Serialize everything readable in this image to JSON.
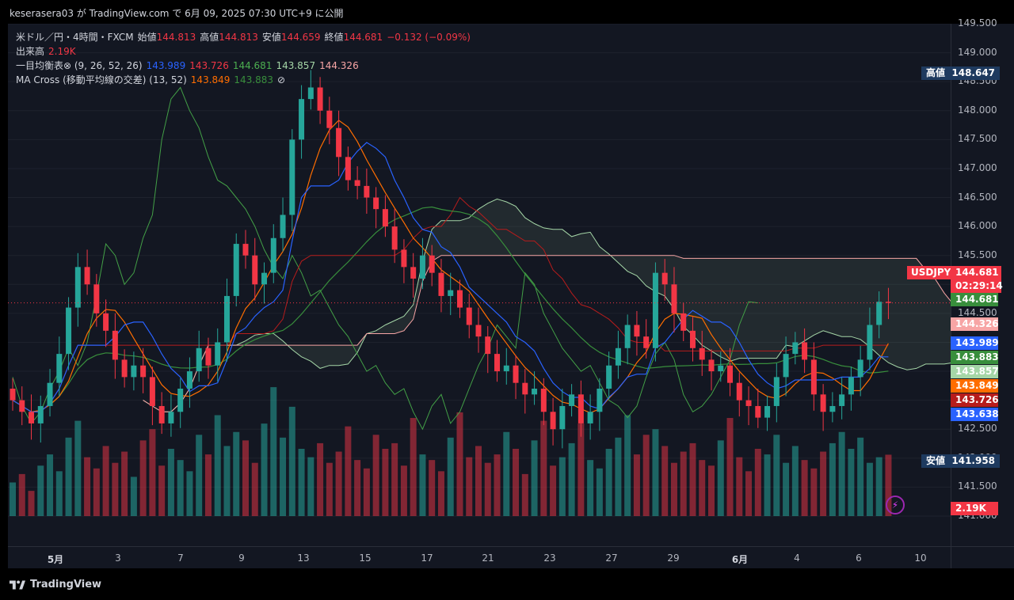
{
  "header": {
    "publish_text": "keserasera03 が TradingView.com で 6月 09, 2025 07:30 UTC+9 に公開"
  },
  "legend": {
    "symbol": "米ドル／円・4時間・FXCM",
    "open_label": "始値",
    "open": "144.813",
    "high_label": "高値",
    "high": "144.813",
    "low_label": "安値",
    "low": "144.659",
    "close_label": "終値",
    "close": "144.681",
    "change": "−0.132 (−0.09%)",
    "volume_label": "出来高",
    "volume": "2.19K",
    "ichimoku_label": "一目均衡表⊗ (9, 26, 52, 26)",
    "ichimoku_values": [
      "143.989",
      "143.726",
      "144.681",
      "143.857",
      "144.326"
    ],
    "macross_label": "MA Cross (移動平均線の交差) (13, 52)",
    "macross_values": [
      "143.849",
      "143.883"
    ],
    "macross_icon": "⊘"
  },
  "price_axis": {
    "ticks": [
      "149.500",
      "149.000",
      "148.500",
      "148.000",
      "147.500",
      "147.000",
      "146.500",
      "146.000",
      "145.500",
      "145.000",
      "144.500",
      "144.000",
      "143.500",
      "143.000",
      "142.500",
      "142.000",
      "141.500",
      "141.000"
    ],
    "high_label": "高値",
    "high_value": "148.647",
    "low_label": "安値",
    "low_value": "141.958",
    "symbol_tag": "USDJPY",
    "last_price": "144.681",
    "countdown": "02:29:14",
    "labels": [
      {
        "text": "144.681",
        "value": 144.681,
        "color": "#388e3c"
      },
      {
        "text": "144.326",
        "value": 144.326,
        "color": "#f7a5a5"
      },
      {
        "text": "143.989",
        "value": 143.989,
        "color": "#2962ff"
      },
      {
        "text": "143.883",
        "value": 143.883,
        "color": "#388e3c"
      },
      {
        "text": "143.857",
        "value": 143.857,
        "color": "#a5d6a7"
      },
      {
        "text": "143.849",
        "value": 143.849,
        "color": "#ff6d00"
      },
      {
        "text": "143.726",
        "value": 143.726,
        "color": "#b71c1c"
      },
      {
        "text": "143.638",
        "value": 143.638,
        "color": "#2962ff"
      }
    ],
    "volume_tag": "2.19K"
  },
  "time_axis": {
    "ticks": [
      {
        "label": "5月",
        "bold": true
      },
      {
        "label": "3",
        "bold": false
      },
      {
        "label": "7",
        "bold": false
      },
      {
        "label": "9",
        "bold": false
      },
      {
        "label": "13",
        "bold": false
      },
      {
        "label": "15",
        "bold": false
      },
      {
        "label": "17",
        "bold": false
      },
      {
        "label": "21",
        "bold": false
      },
      {
        "label": "23",
        "bold": false
      },
      {
        "label": "27",
        "bold": false
      },
      {
        "label": "29",
        "bold": false
      },
      {
        "label": "6月",
        "bold": true
      },
      {
        "label": "4",
        "bold": false
      },
      {
        "label": "6",
        "bold": false
      },
      {
        "label": "10",
        "bold": false
      }
    ]
  },
  "footer": {
    "brand": "TradingView"
  },
  "colors": {
    "up": "#26a69a",
    "down": "#f23645",
    "tenkan": "#2962ff",
    "kijun": "#b71c1c",
    "chikou": "#43a047",
    "spanA": "#a5d6a7",
    "spanB": "#f7a5a5",
    "ma_fast": "#ff6d00",
    "ma_slow": "#388e3c"
  },
  "chart_data": {
    "type": "line",
    "title": "米ドル／円・4時間・FXCM",
    "ylim": [
      141.0,
      149.5
    ],
    "x_ticks": [
      "5月",
      "3",
      "7",
      "9",
      "13",
      "15",
      "17",
      "21",
      "23",
      "27",
      "29",
      "6月",
      "4",
      "6",
      "10"
    ],
    "series": [
      {
        "name": "USDJPY close",
        "values": [
          143.0,
          142.8,
          142.6,
          142.9,
          143.3,
          143.8,
          144.6,
          145.3,
          145.0,
          144.5,
          144.2,
          143.7,
          143.4,
          143.6,
          143.4,
          142.9,
          142.6,
          142.8,
          143.2,
          143.5,
          143.9,
          143.6,
          144.0,
          144.8,
          145.7,
          145.5,
          145.0,
          145.2,
          145.8,
          146.2,
          147.5,
          148.2,
          148.4,
          148.0,
          147.7,
          147.2,
          146.8,
          146.7,
          146.5,
          146.3,
          146.0,
          145.6,
          145.3,
          145.1,
          145.5,
          145.2,
          144.8,
          144.9,
          144.6,
          144.3,
          144.1,
          143.8,
          143.5,
          143.6,
          143.3,
          143.1,
          143.2,
          142.8,
          142.5,
          142.9,
          143.1,
          142.6,
          142.8,
          143.2,
          143.6,
          143.9,
          144.3,
          144.1,
          143.9,
          145.2,
          145.0,
          144.5,
          144.2,
          143.9,
          143.7,
          143.5,
          143.6,
          143.3,
          143.0,
          142.9,
          142.7,
          142.9,
          143.4,
          143.8,
          144.0,
          143.7,
          143.1,
          142.8,
          142.9,
          143.1,
          143.4,
          143.7,
          144.3,
          144.7,
          144.681
        ]
      },
      {
        "name": "出来高",
        "values": [
          1.2,
          1.5,
          0.9,
          1.8,
          2.2,
          1.6,
          2.8,
          3.4,
          2.1,
          1.7,
          2.5,
          1.9,
          2.3,
          1.4,
          2.7,
          3.1,
          1.8,
          2.4,
          2.0,
          1.6,
          2.9,
          2.2,
          3.6,
          2.5,
          3.0,
          2.7,
          1.9,
          3.3,
          4.6,
          2.8,
          3.9,
          2.4,
          2.1,
          2.6,
          1.9,
          2.3,
          3.2,
          2.0,
          1.7,
          2.9,
          2.4,
          2.6,
          1.8,
          3.5,
          2.2,
          2.0,
          1.6,
          2.8,
          3.7,
          2.1,
          2.5,
          1.9,
          2.2,
          3.0,
          2.4,
          1.5,
          2.7,
          3.4,
          1.8,
          2.1,
          2.6,
          3.3,
          2.0,
          1.7,
          2.4,
          2.8,
          3.6,
          2.2,
          2.9,
          3.1,
          2.5,
          1.9,
          2.3,
          2.6,
          2.0,
          1.8,
          2.7,
          3.5,
          2.1,
          1.6,
          2.4,
          2.2,
          2.9,
          1.9,
          2.5,
          2.0,
          1.7,
          2.3,
          2.6,
          3.0,
          2.4,
          2.8,
          1.9,
          2.1,
          2.19
        ]
      }
    ]
  }
}
